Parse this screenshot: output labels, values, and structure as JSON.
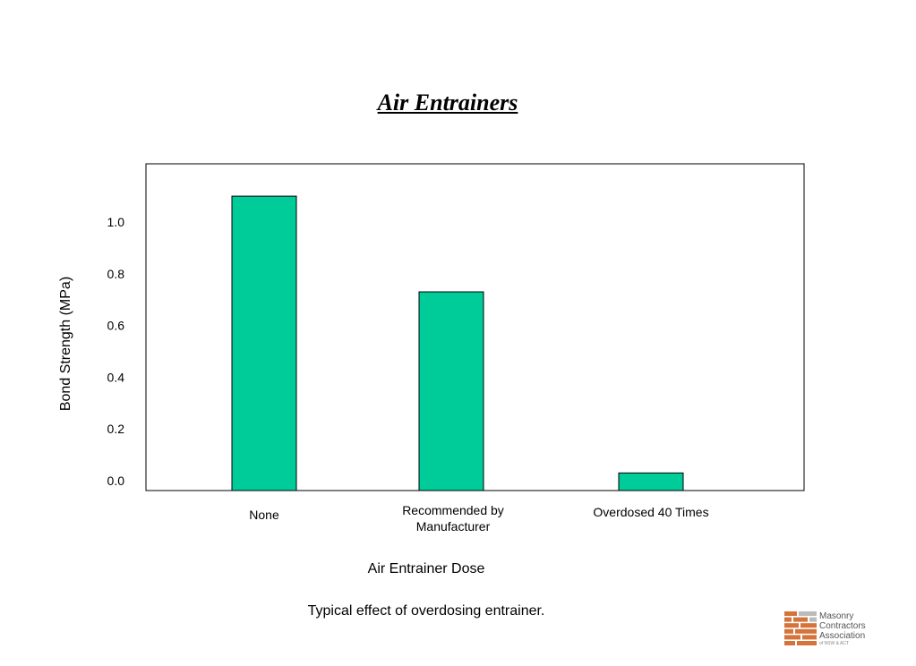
{
  "slide": {
    "title": "Air Entrainers",
    "caption": "Typical effect of overdosing entrainer."
  },
  "chart_data": {
    "type": "bar",
    "categories": [
      "None",
      "Recommended by Manufacturer",
      "Overdosed 40 Times"
    ],
    "values": [
      1.1,
      0.73,
      0.03
    ],
    "xlabel": "Air Entrainer Dose",
    "ylabel": "Bond Strength (MPa)",
    "yticks": [
      "0.0",
      "0.2",
      "0.4",
      "0.6",
      "0.8",
      "1.0"
    ],
    "grid": false,
    "bar_color": "#00cc99"
  },
  "logo": {
    "lines": [
      "Masonry",
      "Contractors",
      "Association"
    ],
    "sub": "of NSW & ACT",
    "brick_color": "#d4733a",
    "grey_color": "#bbbbbb"
  }
}
